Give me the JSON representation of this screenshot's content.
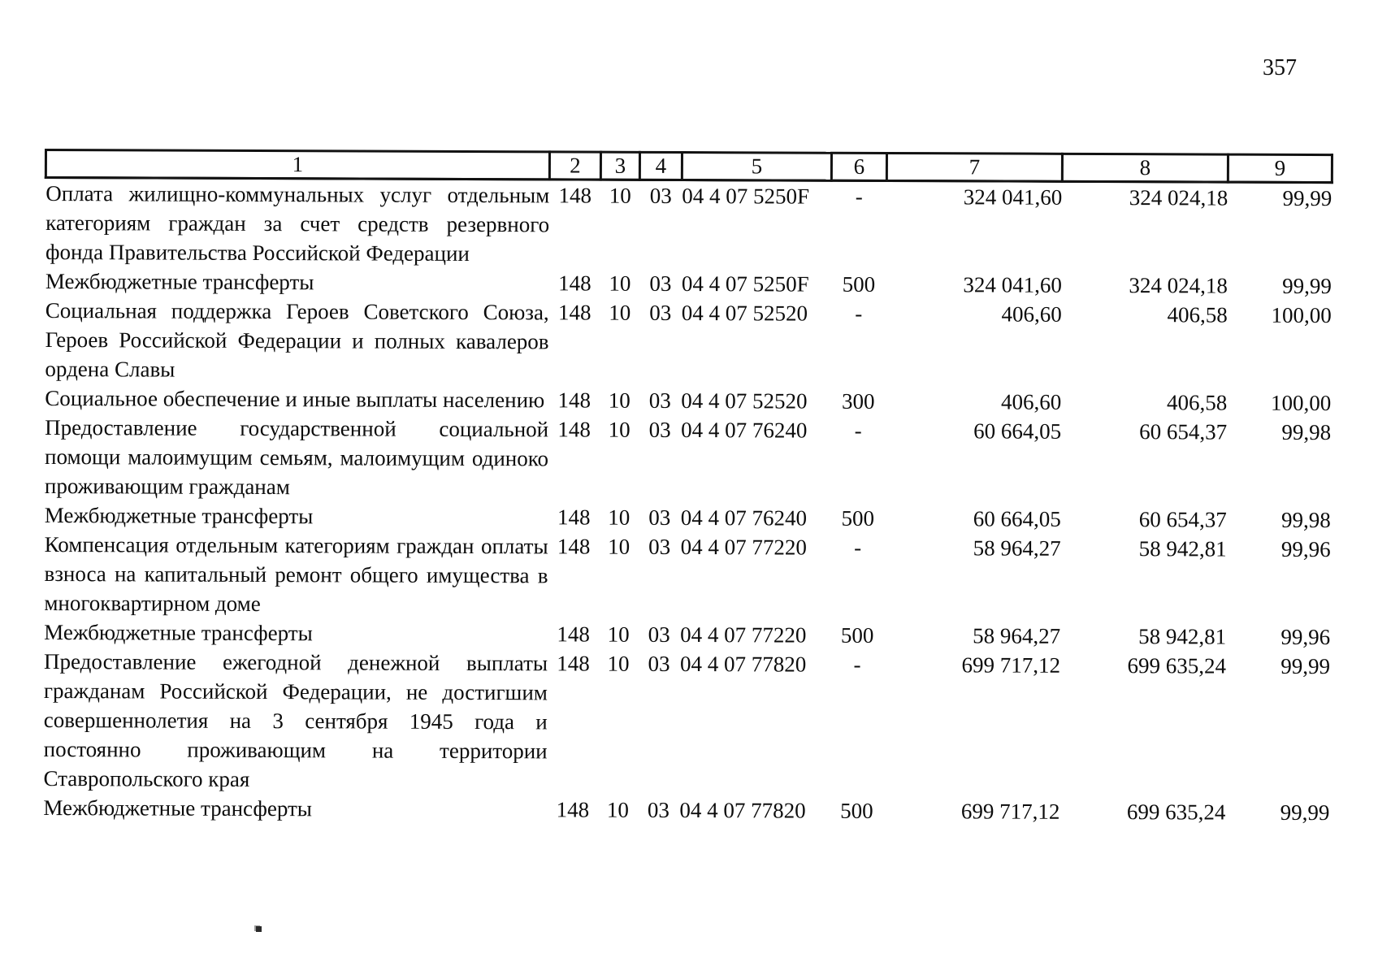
{
  "page_number": "357",
  "table": {
    "header_columns": [
      "1",
      "2",
      "3",
      "4",
      "5",
      "6",
      "7",
      "8",
      "9"
    ],
    "rows": [
      {
        "name": "Оплата жилищно-коммунальных услуг отдельным категориям граждан за счет средств резервного фонда Правительства Российской Федерации",
        "c2": "148",
        "c3": "10",
        "c4": "03",
        "c5": "04 4 07 5250F",
        "c6": "-",
        "c7": "324 041,60",
        "c8": "324 024,18",
        "c9": "99,99"
      },
      {
        "name": "Межбюджетные трансферты",
        "c2": "148",
        "c3": "10",
        "c4": "03",
        "c5": "04 4 07 5250F",
        "c6": "500",
        "c7": "324 041,60",
        "c8": "324 024,18",
        "c9": "99,99"
      },
      {
        "name": "Социальная поддержка Героев Советского Союза, Героев Российской Федерации и полных кавалеров ордена Славы",
        "c2": "148",
        "c3": "10",
        "c4": "03",
        "c5": "04 4 07 52520",
        "c6": "-",
        "c7": "406,60",
        "c8": "406,58",
        "c9": "100,00"
      },
      {
        "name": "Социальное обеспечение и иные выплаты населению",
        "c2": "148",
        "c3": "10",
        "c4": "03",
        "c5": "04 4 07 52520",
        "c6": "300",
        "c7": "406,60",
        "c8": "406,58",
        "c9": "100,00"
      },
      {
        "name": "Предоставление государственной социальной помощи малоимущим семьям, малоимущим одиноко проживающим гражданам",
        "c2": "148",
        "c3": "10",
        "c4": "03",
        "c5": "04 4 07 76240",
        "c6": "-",
        "c7": "60 664,05",
        "c8": "60 654,37",
        "c9": "99,98"
      },
      {
        "name": "Межбюджетные трансферты",
        "c2": "148",
        "c3": "10",
        "c4": "03",
        "c5": "04 4 07 76240",
        "c6": "500",
        "c7": "60 664,05",
        "c8": "60 654,37",
        "c9": "99,98"
      },
      {
        "name": "Компенсация отдельным категориям граждан оплаты взноса на капитальный ремонт общего имущества в многоквартирном доме",
        "c2": "148",
        "c3": "10",
        "c4": "03",
        "c5": "04 4 07 77220",
        "c6": "-",
        "c7": "58 964,27",
        "c8": "58 942,81",
        "c9": "99,96"
      },
      {
        "name": "Межбюджетные трансферты",
        "c2": "148",
        "c3": "10",
        "c4": "03",
        "c5": "04 4 07 77220",
        "c6": "500",
        "c7": "58 964,27",
        "c8": "58 942,81",
        "c9": "99,96"
      },
      {
        "name": "Предоставление ежегодной денежной выплаты гражданам Российской Федерации, не достигшим совершеннолетия на 3 сентября 1945 года и постоянно проживающим на территории Ставропольского края",
        "c2": "148",
        "c3": "10",
        "c4": "03",
        "c5": "04 4 07 77820",
        "c6": "-",
        "c7": "699 717,12",
        "c8": "699 635,24",
        "c9": "99,99"
      },
      {
        "name": "Межбюджетные трансферты",
        "c2": "148",
        "c3": "10",
        "c4": "03",
        "c5": "04 4 07 77820",
        "c6": "500",
        "c7": "699 717,12",
        "c8": "699 635,24",
        "c9": "99,99"
      }
    ]
  }
}
